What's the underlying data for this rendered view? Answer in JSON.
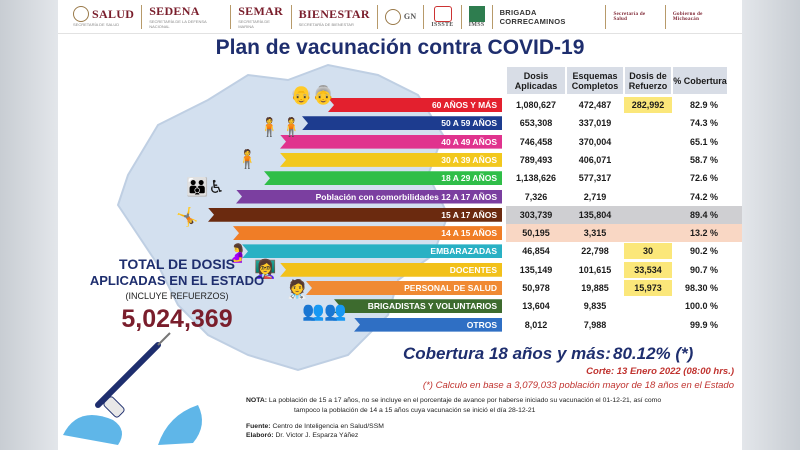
{
  "logos": [
    "SALUD",
    "SEDENA",
    "SEMAR",
    "BIENESTAR",
    "GN",
    "ISSSTE",
    "IMSS",
    "BRIGADA CORRECAMINOS",
    "Secretaría de Salud",
    "Gobierno de Michoacán"
  ],
  "logo_subs": {
    "salud": "SECRETARÍA DE SALUD",
    "sedena": "SECRETARÍA DE LA DEFENSA NACIONAL",
    "semar": "SECRETARÍA DE MARINA",
    "bienestar": "SECRETARÍA DE BIENESTAR"
  },
  "title": "Plan de vacunación contra COVID-19",
  "table": {
    "headers": [
      "Dosis Aplicadas",
      "Esquemas Completos",
      "Dosis de Refuerzo",
      "% Cobertura"
    ],
    "rows": [
      {
        "label": "60 AÑOS Y MÁS",
        "color": "#e3202e",
        "dosis": "1,080,627",
        "esquemas": "472,487",
        "refuerzo": "282,992",
        "cobertura": "82.9 %"
      },
      {
        "label": "50 A 59 AÑOS",
        "color": "#1d3c8f",
        "dosis": "653,308",
        "esquemas": "337,019",
        "refuerzo": "",
        "cobertura": "74.3 %"
      },
      {
        "label": "40 A 49 AÑOS",
        "color": "#e0338e",
        "dosis": "746,458",
        "esquemas": "370,004",
        "refuerzo": "",
        "cobertura": "65.1 %"
      },
      {
        "label": "30 A 39 AÑOS",
        "color": "#f2c81d",
        "dosis": "789,493",
        "esquemas": "406,071",
        "refuerzo": "",
        "cobertura": "58.7 %"
      },
      {
        "label": "18 A 29 AÑOS",
        "color": "#2fbe48",
        "dosis": "1,138,626",
        "esquemas": "577,317",
        "refuerzo": "",
        "cobertura": "72.6 %"
      },
      {
        "label": "Población con comorbilidades 12 A 17 AÑOS",
        "color": "#7b3fa0",
        "dosis": "7,326",
        "esquemas": "2,719",
        "refuerzo": "",
        "cobertura": "74.2 %"
      },
      {
        "label": "15 A 17 AÑOS",
        "color": "#6b2a0f",
        "dosis": "303,739",
        "esquemas": "135,804",
        "refuerzo": "",
        "cobertura": "89.4 %"
      },
      {
        "label": "14 A 15 AÑOS",
        "color": "#f07d26",
        "dosis": "50,195",
        "esquemas": "3,315",
        "refuerzo": "",
        "cobertura": "13.2 %"
      },
      {
        "label": "EMBARAZADAS",
        "color": "#29b1c4",
        "dosis": "46,854",
        "esquemas": "22,798",
        "refuerzo": "30",
        "cobertura": "90.2 %"
      },
      {
        "label": "DOCENTES",
        "color": "#f2c11a",
        "dosis": "135,149",
        "esquemas": "101,615",
        "refuerzo": "33,534",
        "cobertura": "90.7 %"
      },
      {
        "label": "PERSONAL DE SALUD",
        "color": "#f08a33",
        "dosis": "50,978",
        "esquemas": "19,885",
        "refuerzo": "15,973",
        "cobertura": "98.30 %"
      },
      {
        "label": "BRIGADISTAS Y VOLUNTARIOS",
        "color": "#3d6b2e",
        "dosis": "13,604",
        "esquemas": "9,835",
        "refuerzo": "",
        "cobertura": "100.0 %"
      },
      {
        "label": "OTROS",
        "color": "#2f6fc4",
        "dosis": "8,012",
        "esquemas": "7,988",
        "refuerzo": "",
        "cobertura": "99.9 %"
      }
    ]
  },
  "total": {
    "label1": "TOTAL DE DOSIS",
    "label2": "APLICADAS EN EL ESTADO",
    "label3": "(INCLUYE REFUERZOS)",
    "value": "5,024,369"
  },
  "coverage": {
    "label": "Cobertura 18 años y más:",
    "value": "80.12% (*)"
  },
  "corte": "Corte: 13 Enero 2022 (08:00 hrs.)",
  "calc": "(*) Calculo en base a 3,079,033 población mayor de 18 años en el Estado",
  "nota": {
    "label": "NOTA:",
    "line1": "La población de 15 a 17 años, no se incluye en el porcentaje de avance por haberse iniciado su vacunación el 01-12-21, así como",
    "line2": "tampoco la población de 14 a 15 años cuya vacunación se inició el día 28-12-21"
  },
  "fuente": {
    "label": "Fuente:",
    "value": "Centro de Inteligencia en Salud/SSM"
  },
  "elaboro": {
    "label": "Elaboró:",
    "value": "Dr. Victor J. Esparza Yáñez"
  },
  "colors": {
    "navy": "#1e2e6e",
    "maroon": "#7a1e2c",
    "red": "#c0332f",
    "header_bg": "#d8dde6",
    "refuerzo_bg": "#fbe77a"
  }
}
